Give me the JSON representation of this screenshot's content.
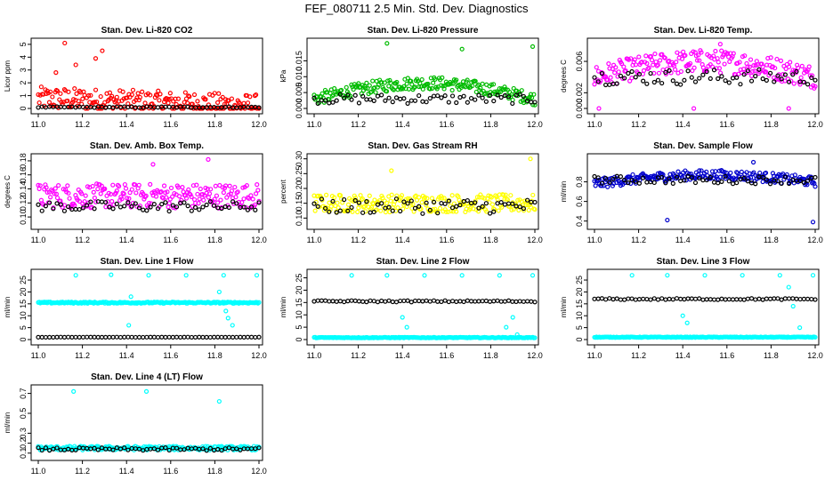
{
  "title": "FEF_080711  2.5 Min. Std. Dev. Diagnostics",
  "chart_data": [
    {
      "type": "scatter",
      "title": "Stan. Dev. Li-820 CO2",
      "ylabel": "Licor ppm",
      "color": "#ff0000",
      "xlim": [
        11.0,
        12.0
      ],
      "ylim": [
        0,
        5.2
      ],
      "xticks": [
        "11.0",
        "11.2",
        "11.4",
        "11.6",
        "11.8",
        "12.0"
      ],
      "yticks": [
        "0",
        "1",
        "2",
        "3",
        "4",
        "5"
      ],
      "series": [
        {
          "name": "colored",
          "base_start": 0.8,
          "base_end": 0.2,
          "spread": 1.8,
          "outliers": [
            [
              11.12,
              5.1
            ],
            [
              11.17,
              3.4
            ],
            [
              11.29,
              4.5
            ],
            [
              11.26,
              3.9
            ],
            [
              11.08,
              2.8
            ]
          ]
        },
        {
          "name": "black",
          "base": 0.1,
          "spread": 0.08
        }
      ]
    },
    {
      "type": "scatter",
      "title": "Stan. Dev. Li-820 Pressure",
      "ylabel": "kPa",
      "color": "#00bb00",
      "xlim": [
        11.0,
        12.0
      ],
      "ylim": [
        0,
        0.021
      ],
      "xticks": [
        "11.0",
        "11.2",
        "11.4",
        "11.6",
        "11.8",
        "12.0"
      ],
      "yticks": [
        "0.000",
        "0.005",
        "0.010",
        "0.015"
      ],
      "series": [
        {
          "name": "colored",
          "base_start": 0.003,
          "base_end": 0.003,
          "hump": 0.005,
          "spread": 0.004,
          "outliers": [
            [
              11.33,
              0.0205
            ],
            [
              11.67,
              0.0187
            ],
            [
              11.99,
              0.0195
            ]
          ]
        },
        {
          "name": "black",
          "base": 0.003,
          "spread": 0.003
        }
      ]
    },
    {
      "type": "scatter",
      "title": "Stan. Dev. Li-820 Temp.",
      "ylabel": "degrees C",
      "color": "#ff00ff",
      "xlim": [
        11.0,
        12.0
      ],
      "ylim": [
        0,
        0.0085
      ],
      "xticks": [
        "11.0",
        "11.2",
        "11.4",
        "11.6",
        "11.8",
        "12.0"
      ],
      "yticks": [
        "0.000",
        "0.002",
        "0.006"
      ],
      "series": [
        {
          "name": "colored",
          "base_start": 0.004,
          "base_end": 0.004,
          "hump": 0.002,
          "spread": 0.003,
          "outliers": [
            [
              11.57,
              0.0082
            ],
            [
              11.02,
              0.0
            ],
            [
              11.45,
              0.0
            ],
            [
              11.88,
              0.0
            ]
          ]
        },
        {
          "name": "black",
          "base": 0.004,
          "spread": 0.002
        }
      ]
    },
    {
      "type": "scatter",
      "title": "Stan. Dev. Amb. Box Temp.",
      "ylabel": "degrees C",
      "color": "#ff00ff",
      "xlim": [
        11.0,
        12.0
      ],
      "ylim": [
        0.09,
        0.185
      ],
      "xticks": [
        "11.0",
        "11.2",
        "11.4",
        "11.6",
        "11.8",
        "12.0"
      ],
      "yticks": [
        "0.10",
        "0.12",
        "0.14",
        "0.16",
        "0.18"
      ],
      "series": [
        {
          "name": "colored",
          "base_start": 0.13,
          "base_end": 0.13,
          "spread": 0.035,
          "outliers": [
            [
              11.77,
              0.182
            ],
            [
              11.52,
              0.175
            ]
          ]
        },
        {
          "name": "black",
          "base": 0.115,
          "spread": 0.015
        }
      ]
    },
    {
      "type": "scatter",
      "title": "Stan. Dev. Gas Stream RH",
      "ylabel": "percent",
      "color": "#ffff00",
      "xlim": [
        11.0,
        12.0
      ],
      "ylim": [
        0.08,
        0.305
      ],
      "xticks": [
        "11.0",
        "11.2",
        "11.4",
        "11.6",
        "11.8",
        "12.0"
      ],
      "yticks": [
        "0.10",
        "0.15",
        "0.20",
        "0.25",
        "0.30"
      ],
      "series": [
        {
          "name": "colored",
          "base_start": 0.15,
          "base_end": 0.15,
          "spread": 0.06,
          "outliers": [
            [
              11.98,
              0.3
            ],
            [
              11.35,
              0.26
            ]
          ]
        },
        {
          "name": "black",
          "base": 0.14,
          "spread": 0.05
        }
      ]
    },
    {
      "type": "scatter",
      "title": "Stan. Dev. Sample Flow",
      "ylabel": "ml/min",
      "color": "#0000cc",
      "xlim": [
        11.0,
        12.0
      ],
      "ylim": [
        0.37,
        1.05
      ],
      "xticks": [
        "11.0",
        "11.2",
        "11.4",
        "11.6",
        "11.8",
        "12.0"
      ],
      "yticks": [
        "0.4",
        "0.6",
        "0.8"
      ],
      "series": [
        {
          "name": "colored",
          "base_start": 0.78,
          "base_end": 0.8,
          "hump": 0.08,
          "spread": 0.1,
          "outliers": [
            [
              11.33,
              0.41
            ],
            [
              11.99,
              0.39
            ],
            [
              11.72,
              1.0
            ]
          ]
        },
        {
          "name": "black",
          "base": 0.82,
          "spread": 0.08
        }
      ]
    },
    {
      "type": "scatter",
      "title": "Stan. Dev. Line 1 Flow",
      "ylabel": "ml/min",
      "color": "#00ffff",
      "xlim": [
        11.0,
        12.0
      ],
      "ylim": [
        0,
        28
      ],
      "xticks": [
        "11.0",
        "11.2",
        "11.4",
        "11.6",
        "11.8",
        "12.0"
      ],
      "yticks": [
        "0",
        "5",
        "10",
        "15",
        "20",
        "25"
      ],
      "series": [
        {
          "name": "colored",
          "base_start": 15.5,
          "base_end": 15.5,
          "spread": 0.6,
          "outliers": [
            [
              11.17,
              27.0
            ],
            [
              11.33,
              27.2
            ],
            [
              11.5,
              27.0
            ],
            [
              11.67,
              27.0
            ],
            [
              11.84,
              27.0
            ],
            [
              11.99,
              27.0
            ],
            [
              11.42,
              18.0
            ],
            [
              11.41,
              6.0
            ],
            [
              11.85,
              12.0
            ],
            [
              11.88,
              6.0
            ],
            [
              11.86,
              9.0
            ],
            [
              11.82,
              20.0
            ]
          ]
        },
        {
          "name": "black",
          "base": 1.0,
          "spread": 0.1
        }
      ]
    },
    {
      "type": "scatter",
      "title": "Stan. Dev. Line 2 Flow",
      "ylabel": "ml/min",
      "color": "#00ffff",
      "xlim": [
        11.0,
        12.0
      ],
      "ylim": [
        0,
        27
      ],
      "xticks": [
        "11.0",
        "11.2",
        "11.4",
        "11.6",
        "11.8",
        "12.0"
      ],
      "yticks": [
        "0",
        "5",
        "10",
        "15",
        "20",
        "25"
      ],
      "series": [
        {
          "name": "colored",
          "base_start": 0.8,
          "base_end": 0.8,
          "spread": 0.3,
          "outliers": [
            [
              11.17,
              26.0
            ],
            [
              11.33,
              26.0
            ],
            [
              11.5,
              26.0
            ],
            [
              11.67,
              26.0
            ],
            [
              11.84,
              26.0
            ],
            [
              11.99,
              26.0
            ],
            [
              11.4,
              9.0
            ],
            [
              11.42,
              5.0
            ],
            [
              11.87,
              5.0
            ],
            [
              11.92,
              2.0
            ],
            [
              11.9,
              9.0
            ]
          ]
        },
        {
          "name": "black",
          "base": 15.5,
          "spread": 0.6
        }
      ]
    },
    {
      "type": "scatter",
      "title": "Stan. Dev. Line 3 Flow",
      "ylabel": "ml/min",
      "color": "#00ffff",
      "xlim": [
        11.0,
        12.0
      ],
      "ylim": [
        0,
        28
      ],
      "xticks": [
        "11.0",
        "11.2",
        "11.4",
        "11.6",
        "11.8",
        "12.0"
      ],
      "yticks": [
        "0",
        "5",
        "10",
        "15",
        "20",
        "25"
      ],
      "series": [
        {
          "name": "colored",
          "base_start": 1.0,
          "base_end": 1.0,
          "spread": 0.3,
          "outliers": [
            [
              11.17,
              27.0
            ],
            [
              11.33,
              27.0
            ],
            [
              11.5,
              27.0
            ],
            [
              11.67,
              27.0
            ],
            [
              11.84,
              27.0
            ],
            [
              11.99,
              27.0
            ],
            [
              11.4,
              10.0
            ],
            [
              11.42,
              7.0
            ],
            [
              11.9,
              14.0
            ],
            [
              11.93,
              5.0
            ],
            [
              11.88,
              22.0
            ]
          ]
        },
        {
          "name": "black",
          "base": 17.0,
          "spread": 0.6
        }
      ]
    },
    {
      "type": "scatter",
      "title": "Stan. Dev. Line 4 (LT) Flow",
      "ylabel": "ml/min",
      "color": "#00ffff",
      "xlim": [
        11.0,
        12.0
      ],
      "ylim": [
        0.08,
        0.75
      ],
      "xticks": [
        "11.0",
        "11.2",
        "11.4",
        "11.6",
        "11.8",
        "12.0"
      ],
      "yticks": [
        "0.1",
        "0.2",
        "0.3",
        "0.5",
        "0.7"
      ],
      "series": [
        {
          "name": "colored",
          "base_start": 0.15,
          "base_end": 0.15,
          "spread": 0.04,
          "outliers": [
            [
              11.16,
              0.72
            ],
            [
              11.49,
              0.72
            ],
            [
              11.82,
              0.62
            ]
          ]
        },
        {
          "name": "black",
          "base": 0.14,
          "spread": 0.03
        }
      ]
    }
  ]
}
